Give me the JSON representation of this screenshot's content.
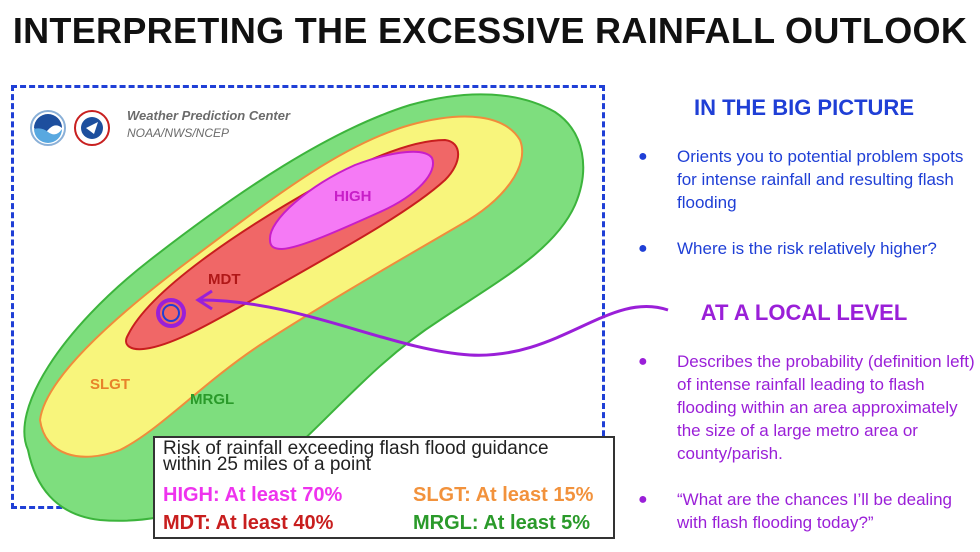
{
  "title": "INTERPRETING THE EXCESSIVE RAINFALL OUTLOOK",
  "map": {
    "agency_name": "Weather Prediction Center",
    "agency_sub": "NOAA/NWS/NCEP",
    "labels": {
      "high": "HIGH",
      "mdt": "MDT",
      "slgt": "SLGT",
      "mrgl": "MRGL"
    },
    "legend": {
      "line1": "Risk of rainfall exceeding flash flood guidance",
      "line2": "within 25 miles of a point",
      "high": "HIGH: At least 70%",
      "slgt": "SLGT: At least 15%",
      "mdt": "MDT: At least 40%",
      "mrgl": "MRGL: At least 5%"
    },
    "colors": {
      "high": "#f57af5",
      "high_border": "#c81ec8",
      "mdt": "#f06767",
      "mdt_border": "#c81e1e",
      "slgt": "#f8f57c",
      "slgt_border": "#f08c3c",
      "mrgl": "#7ede7e",
      "mrgl_border": "#3cb43c",
      "frame": "#1f3fd6",
      "arrow": "#9a1fd8"
    }
  },
  "big_picture": {
    "heading": "IN THE BIG PICTURE",
    "bullets": [
      "Orients you to potential problem spots for intense rainfall and resulting flash flooding",
      "Where is the risk relatively higher?"
    ]
  },
  "local_level": {
    "heading": "AT A LOCAL LEVEL",
    "bullets": [
      "Describes the probability (definition left) of intense rainfall leading to flash flooding within an area approximately the size of a large metro area or county/parish.",
      "“What are the chances I’ll be dealing with flash flooding today?”"
    ]
  }
}
